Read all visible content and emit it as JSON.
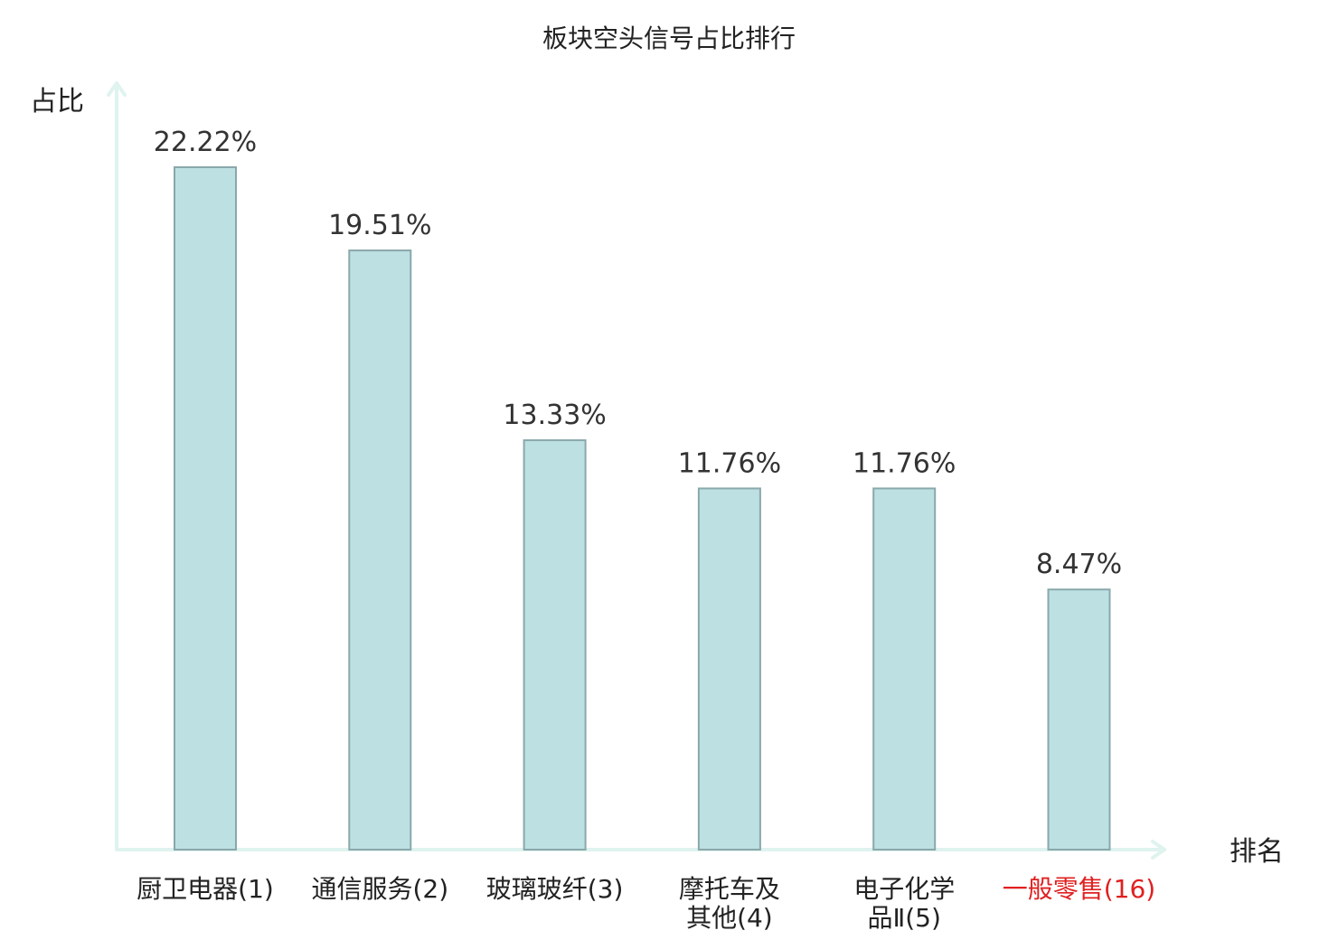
{
  "chart_data": {
    "type": "bar",
    "title": "板块空头信号占比排行",
    "ylabel": "占比",
    "xlabel": "排名",
    "categories": [
      [
        "厨卫电器(1)"
      ],
      [
        "通信服务(2)"
      ],
      [
        "玻璃玻纤(3)"
      ],
      [
        "摩托车及",
        "其他(4)"
      ],
      [
        "电子化学",
        "品Ⅱ(5)"
      ],
      [
        "一般零售(16)"
      ]
    ],
    "values": [
      22.22,
      19.51,
      13.33,
      11.76,
      11.76,
      8.47
    ],
    "value_labels": [
      "22.22%",
      "19.51%",
      "13.33%",
      "11.76%",
      "11.76%",
      "8.47%"
    ],
    "highlight_index": 5,
    "ylim": [
      0,
      25
    ],
    "grid": false,
    "colors": {
      "bar_fill": "#bde0e3",
      "bar_stroke": "#8aa8ab",
      "axis": "#dff3ef",
      "text": "#222222",
      "highlight_text": "#e02020"
    }
  }
}
